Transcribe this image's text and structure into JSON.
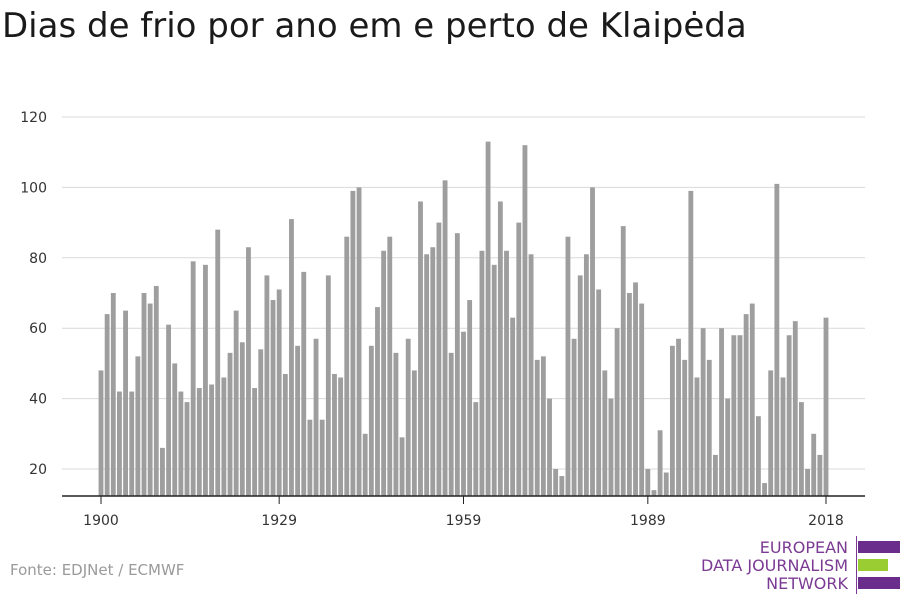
{
  "title": "Dias de frio por ano em e perto de Klaipėda",
  "source": "Fonte: EDJNet / ECMWF",
  "logo": {
    "line1": "EUROPEAN",
    "line2": "DATA JOURNALISM",
    "line3": "NETWORK",
    "purple": "#6b2d8c",
    "green": "#9acd32"
  },
  "colors": {
    "bar": "#9e9e9e",
    "grid": "#d9d9d9",
    "axis": "#222222",
    "tick_text": "#333333"
  },
  "chart_data": {
    "type": "bar",
    "title": "Dias de frio por ano em e perto de Klaipėda",
    "xlabel": "",
    "ylabel": "",
    "x_ticks": [
      1900,
      1929,
      1959,
      1989,
      2018
    ],
    "y_ticks": [
      20,
      40,
      60,
      80,
      100,
      120
    ],
    "ylim": [
      12,
      122
    ],
    "xlim": [
      1900,
      2018
    ],
    "grid": true,
    "x": [
      1900,
      1901,
      1902,
      1903,
      1904,
      1905,
      1906,
      1907,
      1908,
      1909,
      1910,
      1911,
      1912,
      1913,
      1914,
      1915,
      1916,
      1917,
      1918,
      1919,
      1920,
      1921,
      1922,
      1923,
      1924,
      1925,
      1926,
      1927,
      1928,
      1929,
      1930,
      1931,
      1932,
      1933,
      1934,
      1935,
      1936,
      1937,
      1938,
      1939,
      1940,
      1941,
      1942,
      1943,
      1944,
      1945,
      1946,
      1947,
      1948,
      1949,
      1950,
      1951,
      1952,
      1953,
      1954,
      1955,
      1956,
      1957,
      1958,
      1959,
      1960,
      1961,
      1962,
      1963,
      1964,
      1965,
      1966,
      1967,
      1968,
      1969,
      1970,
      1971,
      1972,
      1973,
      1974,
      1975,
      1976,
      1977,
      1978,
      1979,
      1980,
      1981,
      1982,
      1983,
      1984,
      1985,
      1986,
      1987,
      1988,
      1989,
      1990,
      1991,
      1992,
      1993,
      1994,
      1995,
      1996,
      1997,
      1998,
      1999,
      2000,
      2001,
      2002,
      2003,
      2004,
      2005,
      2006,
      2007,
      2008,
      2009,
      2010,
      2011,
      2012,
      2013,
      2014,
      2015,
      2016,
      2017,
      2018
    ],
    "values": [
      48,
      64,
      70,
      42,
      65,
      42,
      52,
      70,
      67,
      72,
      26,
      61,
      50,
      42,
      39,
      79,
      43,
      78,
      44,
      88,
      46,
      53,
      65,
      56,
      83,
      43,
      54,
      75,
      68,
      71,
      47,
      91,
      55,
      76,
      34,
      57,
      34,
      75,
      47,
      46,
      86,
      99,
      100,
      30,
      55,
      66,
      82,
      86,
      53,
      29,
      57,
      48,
      96,
      81,
      83,
      90,
      102,
      53,
      87,
      59,
      68,
      39,
      82,
      113,
      78,
      96,
      82,
      63,
      90,
      112,
      81,
      51,
      52,
      40,
      20,
      18,
      86,
      57,
      75,
      81,
      100,
      71,
      48,
      40,
      60,
      89,
      70,
      73,
      67,
      20,
      14,
      31,
      19,
      55,
      57,
      51,
      99,
      46,
      60,
      51,
      24,
      60,
      40,
      58,
      58,
      64,
      67,
      35,
      16,
      48,
      101,
      46,
      58,
      62,
      39,
      20,
      30,
      24,
      63
    ]
  }
}
